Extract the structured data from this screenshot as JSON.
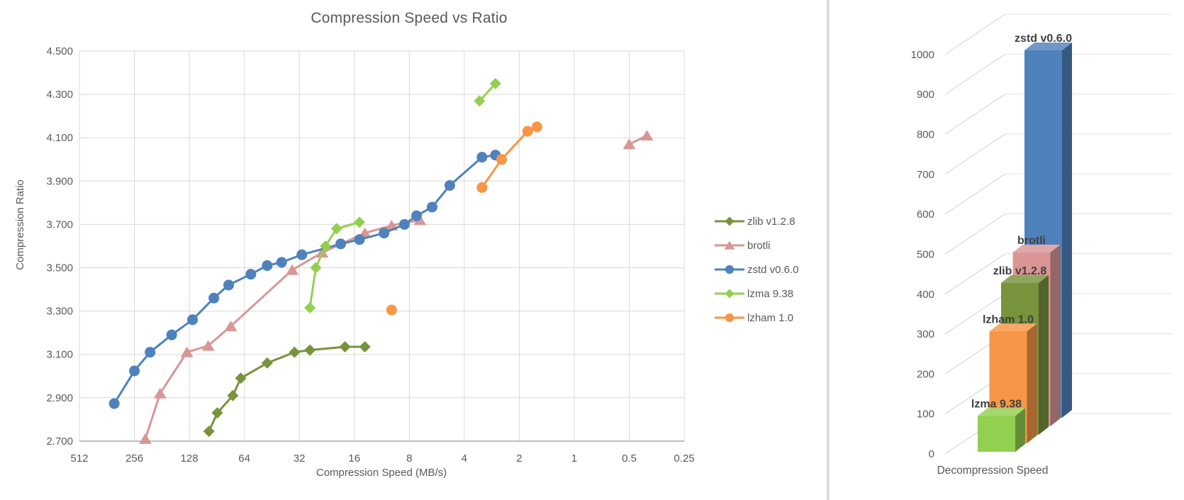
{
  "chart_data": [
    {
      "type": "line",
      "title": "Compression Speed vs Ratio",
      "xlabel": "Compression Speed (MB/s)",
      "ylabel": "Compression Ratio",
      "x_scale": "log2-reversed",
      "x_range": [
        512,
        0.25
      ],
      "y_range": [
        2.7,
        4.5
      ],
      "grid": true,
      "legend_position": "right",
      "x_ticks": [
        "512",
        "256",
        "128",
        "64",
        "32",
        "16",
        "8",
        "4",
        "2",
        "1",
        "0.5",
        "0.25"
      ],
      "y_ticks": [
        "4.500",
        "4.300",
        "4.100",
        "3.900",
        "3.700",
        "3.500",
        "3.300",
        "3.100",
        "2.900",
        "2.700"
      ],
      "series": [
        {
          "name": "zlib v1.2.8",
          "color": "#77933C",
          "marker": "diamond",
          "segments": [
            [
              [
                100,
                2.745
              ],
              [
                90,
                2.83
              ],
              [
                74,
                2.91
              ],
              [
                67,
                2.99
              ],
              [
                48,
                3.06
              ],
              [
                34,
                3.11
              ],
              [
                28,
                3.12
              ],
              [
                18,
                3.135
              ],
              [
                14,
                3.135
              ]
            ]
          ]
        },
        {
          "name": "brotli",
          "color": "#D99694",
          "marker": "triangle",
          "segments": [
            [
              [
                223,
                2.71
              ],
              [
                185,
                2.92
              ],
              [
                132,
                3.11
              ],
              [
                101,
                3.14
              ],
              [
                76,
                3.23
              ],
              [
                35,
                3.49
              ],
              [
                24,
                3.57
              ],
              [
                14,
                3.66
              ],
              [
                10,
                3.695
              ],
              [
                7,
                3.72
              ]
            ],
            [
              [
                0.5,
                4.07
              ],
              [
                0.4,
                4.11
              ]
            ]
          ]
        },
        {
          "name": "zstd v0.6.0",
          "color": "#4F81BD",
          "marker": "circle",
          "segments": [
            [
              [
                330,
                2.873
              ],
              [
                256,
                3.024
              ],
              [
                210,
                3.11
              ],
              [
                160,
                3.19
              ],
              [
                123,
                3.26
              ],
              [
                94,
                3.36
              ],
              [
                78,
                3.42
              ],
              [
                59,
                3.47
              ],
              [
                48,
                3.51
              ],
              [
                40,
                3.525
              ],
              [
                31,
                3.56
              ],
              [
                19,
                3.61
              ],
              [
                15,
                3.63
              ],
              [
                11,
                3.66
              ],
              [
                8.5,
                3.7
              ],
              [
                7.3,
                3.74
              ],
              [
                6,
                3.78
              ],
              [
                4.8,
                3.88
              ],
              [
                3.2,
                4.01
              ],
              [
                2.7,
                4.02
              ]
            ]
          ]
        },
        {
          "name": "lzma 9.38",
          "color": "#92D050",
          "marker": "diamond",
          "segments": [
            [
              [
                28,
                3.315
              ],
              [
                26,
                3.5
              ],
              [
                23,
                3.6
              ],
              [
                20,
                3.68
              ],
              [
                15,
                3.71
              ]
            ],
            [
              [
                3.3,
                4.27
              ],
              [
                2.7,
                4.35
              ]
            ]
          ]
        },
        {
          "name": "lzham 1.0",
          "color": "#F79646",
          "marker": "circle",
          "segments": [
            [
              [
                10,
                3.305
              ]
            ],
            [
              [
                3.2,
                3.87
              ],
              [
                2.5,
                4.0
              ],
              [
                1.8,
                4.13
              ],
              [
                1.6,
                4.15
              ]
            ]
          ]
        }
      ]
    },
    {
      "type": "bar",
      "subtype": "3d-column",
      "category_label": "Decompression Speed",
      "ylim": [
        0,
        1000
      ],
      "y_ticks": [
        0,
        100,
        200,
        300,
        400,
        500,
        600,
        700,
        800,
        900,
        1000
      ],
      "bars": [
        {
          "name": "lzma 9.38",
          "value": 90,
          "color": "#92D050"
        },
        {
          "name": "lzham 1.0",
          "value": 280,
          "color": "#F79646"
        },
        {
          "name": "zlib v1.2.8",
          "value": 380,
          "color": "#77933C"
        },
        {
          "name": "brotli",
          "value": 435,
          "color": "#D99694"
        },
        {
          "name": "zstd v0.6.0",
          "value": 920,
          "color": "#4F81BD"
        }
      ]
    }
  ],
  "colors": {
    "text": "#595959",
    "bar_label_text": "#3F3F3F",
    "gridline": "#D9D9D9",
    "axis_line": "#ABABAB",
    "divider": "#DBDBDB",
    "background": "#FFFFFF"
  }
}
